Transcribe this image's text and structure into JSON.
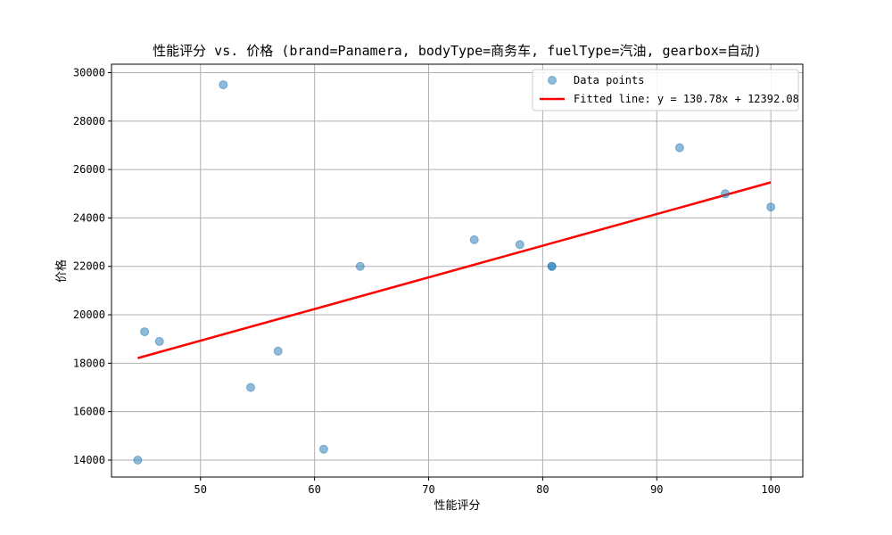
{
  "chart_data": {
    "type": "scatter",
    "title": "性能评分 vs. 价格 (brand=Panamera, bodyType=商务车, fuelType=汽油, gearbox=自动)",
    "xlabel": "性能评分",
    "ylabel": "价格",
    "xlim": [
      42.2,
      102.8
    ],
    "ylim": [
      13300,
      30350
    ],
    "xticks": [
      50,
      60,
      70,
      80,
      90,
      100
    ],
    "yticks": [
      14000,
      16000,
      18000,
      20000,
      22000,
      24000,
      26000,
      28000,
      30000
    ],
    "grid": true,
    "legend_position": "top-right",
    "series": [
      {
        "name": "Data points",
        "kind": "scatter",
        "color": "#1f77b4",
        "points": [
          {
            "x": 44.5,
            "y": 14000
          },
          {
            "x": 45.1,
            "y": 19300
          },
          {
            "x": 46.4,
            "y": 18900
          },
          {
            "x": 52.0,
            "y": 29500
          },
          {
            "x": 54.4,
            "y": 17000
          },
          {
            "x": 56.8,
            "y": 18500
          },
          {
            "x": 60.8,
            "y": 14450
          },
          {
            "x": 64.0,
            "y": 22000
          },
          {
            "x": 74.0,
            "y": 23100
          },
          {
            "x": 78.0,
            "y": 22900
          },
          {
            "x": 80.8,
            "y": 22000
          },
          {
            "x": 80.8,
            "y": 22000
          },
          {
            "x": 92.0,
            "y": 26900
          },
          {
            "x": 96.0,
            "y": 25000
          },
          {
            "x": 100.0,
            "y": 24450
          }
        ]
      },
      {
        "name": "Fitted line: y = 130.78x + 12392.08",
        "kind": "line",
        "color": "#ff0000",
        "slope": 130.78,
        "intercept": 12392.08,
        "x_range": [
          44.5,
          100.0
        ]
      }
    ]
  }
}
